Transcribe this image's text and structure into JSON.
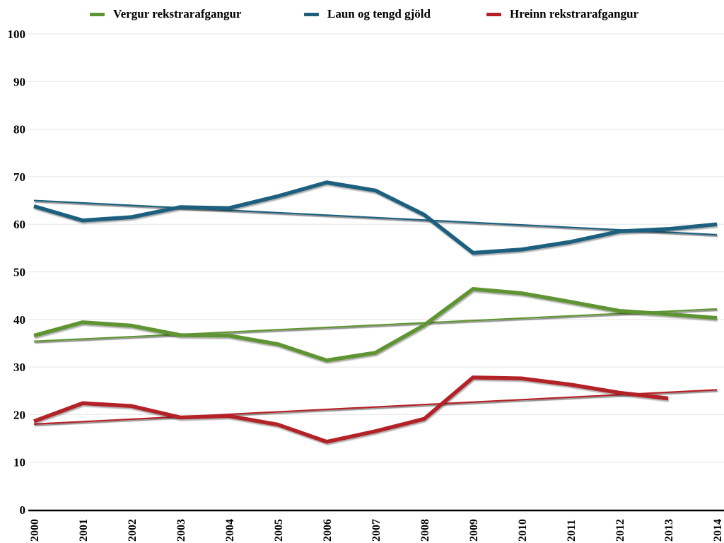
{
  "chart_data": {
    "type": "line",
    "title": "",
    "xlabel": "",
    "ylabel": "",
    "legend_position": "top",
    "grid": "horizontal",
    "ylim": [
      0,
      100
    ],
    "yticks": [
      0,
      10,
      20,
      30,
      40,
      50,
      60,
      70,
      80,
      90,
      100
    ],
    "x_categories": [
      "2000",
      "2001",
      "2002",
      "2003",
      "2004",
      "2005",
      "2006",
      "2007",
      "2008",
      "2009",
      "2010",
      "2011",
      "2012",
      "2013",
      "2014"
    ],
    "series": [
      {
        "name": "Vergur rekstrarafgangur",
        "color": "#5f9432",
        "values": [
          36.6,
          39.4,
          38.7,
          36.7,
          36.6,
          34.8,
          31.4,
          33.0,
          38.8,
          46.4,
          45.5,
          43.7,
          41.8,
          41.1,
          40.3
        ],
        "trendline": {
          "start": 35.4,
          "end": 42.2
        }
      },
      {
        "name": "Laun og tengd gjöld",
        "color": "#1e5f7e",
        "values": [
          63.8,
          60.8,
          61.5,
          63.6,
          63.4,
          65.9,
          68.8,
          67.1,
          62.0,
          54.0,
          54.7,
          56.3,
          58.5,
          59.0,
          60.0
        ],
        "trendline": {
          "start": 65.0,
          "end": 57.8
        }
      },
      {
        "name": "Hreinn rekstrarafgangur",
        "color": "#b32025",
        "values": [
          18.6,
          22.4,
          21.8,
          19.4,
          19.7,
          17.9,
          14.3,
          16.5,
          19.1,
          27.8,
          27.6,
          26.3,
          24.6,
          23.4,
          null
        ],
        "trendline": {
          "start": 18.0,
          "end": 25.2
        }
      }
    ],
    "axis_colors": {
      "gridline": "#e9e9e9",
      "axis_line": "#000000",
      "tick_label": "#000000"
    }
  }
}
